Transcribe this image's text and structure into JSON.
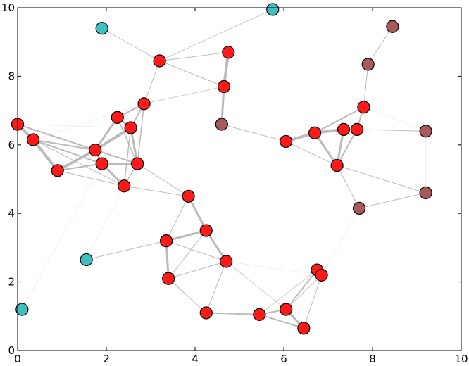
{
  "chart_data": {
    "type": "scatter",
    "subtype": "network-graph",
    "title": "",
    "xlabel": "",
    "ylabel": "",
    "xlim": [
      0,
      10
    ],
    "ylim": [
      0,
      10
    ],
    "xticks": [
      0,
      2,
      4,
      6,
      8,
      10
    ],
    "yticks": [
      0,
      2,
      4,
      6,
      8,
      10
    ],
    "grid": false,
    "legend": "none",
    "colors": {
      "red": "#ff1a1a",
      "teal": "#3fbfbf",
      "brown": "#a85a5a",
      "edge": "#bbbbbb",
      "node_outline": "#000000"
    },
    "nodes": [
      {
        "id": 0,
        "x": 0.0,
        "y": 6.6,
        "color": "red"
      },
      {
        "id": 1,
        "x": 0.35,
        "y": 6.15,
        "color": "red"
      },
      {
        "id": 2,
        "x": 0.9,
        "y": 5.25,
        "color": "red"
      },
      {
        "id": 3,
        "x": 1.75,
        "y": 5.85,
        "color": "red"
      },
      {
        "id": 4,
        "x": 1.9,
        "y": 5.45,
        "color": "red"
      },
      {
        "id": 5,
        "x": 2.25,
        "y": 6.8,
        "color": "red"
      },
      {
        "id": 6,
        "x": 2.55,
        "y": 6.5,
        "color": "red"
      },
      {
        "id": 7,
        "x": 2.85,
        "y": 7.2,
        "color": "red"
      },
      {
        "id": 8,
        "x": 2.7,
        "y": 5.45,
        "color": "red"
      },
      {
        "id": 9,
        "x": 2.4,
        "y": 4.8,
        "color": "red"
      },
      {
        "id": 10,
        "x": 3.2,
        "y": 8.45,
        "color": "red"
      },
      {
        "id": 11,
        "x": 4.75,
        "y": 8.7,
        "color": "red"
      },
      {
        "id": 12,
        "x": 4.65,
        "y": 7.7,
        "color": "red"
      },
      {
        "id": 13,
        "x": 4.6,
        "y": 6.6,
        "color": "brown"
      },
      {
        "id": 14,
        "x": 3.85,
        "y": 4.5,
        "color": "red"
      },
      {
        "id": 15,
        "x": 4.25,
        "y": 3.5,
        "color": "red"
      },
      {
        "id": 16,
        "x": 3.35,
        "y": 3.2,
        "color": "red"
      },
      {
        "id": 17,
        "x": 4.7,
        "y": 2.6,
        "color": "red"
      },
      {
        "id": 18,
        "x": 3.4,
        "y": 2.1,
        "color": "red"
      },
      {
        "id": 19,
        "x": 4.25,
        "y": 1.1,
        "color": "red"
      },
      {
        "id": 20,
        "x": 5.45,
        "y": 1.05,
        "color": "red"
      },
      {
        "id": 21,
        "x": 6.05,
        "y": 1.2,
        "color": "red"
      },
      {
        "id": 22,
        "x": 6.45,
        "y": 0.65,
        "color": "red"
      },
      {
        "id": 23,
        "x": 6.75,
        "y": 2.35,
        "color": "red"
      },
      {
        "id": 24,
        "x": 6.85,
        "y": 2.2,
        "color": "red"
      },
      {
        "id": 25,
        "x": 6.05,
        "y": 6.1,
        "color": "red"
      },
      {
        "id": 26,
        "x": 6.7,
        "y": 6.35,
        "color": "red"
      },
      {
        "id": 27,
        "x": 7.35,
        "y": 6.45,
        "color": "red"
      },
      {
        "id": 28,
        "x": 7.65,
        "y": 6.45,
        "color": "red"
      },
      {
        "id": 29,
        "x": 7.8,
        "y": 7.1,
        "color": "red"
      },
      {
        "id": 30,
        "x": 7.2,
        "y": 5.4,
        "color": "red"
      },
      {
        "id": 31,
        "x": 7.9,
        "y": 8.35,
        "color": "brown"
      },
      {
        "id": 32,
        "x": 8.45,
        "y": 9.45,
        "color": "brown"
      },
      {
        "id": 33,
        "x": 9.2,
        "y": 6.4,
        "color": "brown"
      },
      {
        "id": 34,
        "x": 9.2,
        "y": 4.6,
        "color": "brown"
      },
      {
        "id": 35,
        "x": 7.7,
        "y": 4.15,
        "color": "brown"
      },
      {
        "id": 36,
        "x": 1.9,
        "y": 9.4,
        "color": "teal"
      },
      {
        "id": 37,
        "x": 5.75,
        "y": 9.95,
        "color": "teal"
      },
      {
        "id": 38,
        "x": 1.55,
        "y": 2.65,
        "color": "teal"
      },
      {
        "id": 39,
        "x": 0.1,
        "y": 1.2,
        "color": "teal"
      }
    ],
    "edges": [
      [
        0,
        1,
        4
      ],
      [
        1,
        2,
        4
      ],
      [
        0,
        3,
        2
      ],
      [
        1,
        3,
        2
      ],
      [
        2,
        3,
        4
      ],
      [
        2,
        4,
        2
      ],
      [
        2,
        9,
        1
      ],
      [
        1,
        4,
        2
      ],
      [
        3,
        4,
        3
      ],
      [
        3,
        5,
        3
      ],
      [
        3,
        6,
        4
      ],
      [
        3,
        8,
        2
      ],
      [
        4,
        8,
        3
      ],
      [
        4,
        9,
        3
      ],
      [
        5,
        6,
        3
      ],
      [
        5,
        7,
        2
      ],
      [
        6,
        7,
        2
      ],
      [
        6,
        8,
        3
      ],
      [
        6,
        9,
        1.5
      ],
      [
        7,
        8,
        1.5
      ],
      [
        5,
        8,
        1.5
      ],
      [
        8,
        9,
        1.5
      ],
      [
        0,
        8,
        1
      ],
      [
        1,
        9,
        1
      ],
      [
        7,
        10,
        1
      ],
      [
        10,
        12,
        1
      ],
      [
        10,
        11,
        1
      ],
      [
        11,
        12,
        4
      ],
      [
        12,
        13,
        3
      ],
      [
        7,
        12,
        0.7
      ],
      [
        10,
        37,
        0.8
      ],
      [
        36,
        10,
        0.8
      ],
      [
        13,
        25,
        1
      ],
      [
        9,
        14,
        1
      ],
      [
        8,
        14,
        1
      ],
      [
        14,
        15,
        3
      ],
      [
        14,
        16,
        1
      ],
      [
        15,
        16,
        3
      ],
      [
        15,
        17,
        3
      ],
      [
        16,
        18,
        3
      ],
      [
        16,
        17,
        1
      ],
      [
        18,
        15,
        1
      ],
      [
        18,
        19,
        1
      ],
      [
        18,
        17,
        1
      ],
      [
        19,
        17,
        1
      ],
      [
        19,
        20,
        2
      ],
      [
        20,
        21,
        2
      ],
      [
        21,
        22,
        3
      ],
      [
        20,
        22,
        2
      ],
      [
        21,
        23,
        2
      ],
      [
        22,
        24,
        1
      ],
      [
        23,
        24,
        2
      ],
      [
        21,
        24,
        1
      ],
      [
        20,
        23,
        0.7
      ],
      [
        17,
        21,
        0.7
      ],
      [
        17,
        24,
        0.4
      ],
      [
        25,
        26,
        4
      ],
      [
        25,
        30,
        1
      ],
      [
        26,
        27,
        4
      ],
      [
        26,
        28,
        2
      ],
      [
        26,
        29,
        2
      ],
      [
        26,
        30,
        3
      ],
      [
        27,
        28,
        3
      ],
      [
        27,
        30,
        3
      ],
      [
        28,
        30,
        2
      ],
      [
        28,
        29,
        2
      ],
      [
        29,
        31,
        1
      ],
      [
        31,
        32,
        1
      ],
      [
        28,
        33,
        1
      ],
      [
        33,
        34,
        0.5
      ],
      [
        34,
        35,
        1
      ],
      [
        30,
        35,
        1
      ],
      [
        30,
        34,
        1
      ],
      [
        29,
        33,
        0.4
      ],
      [
        38,
        16,
        1
      ],
      [
        38,
        9,
        0.4
      ],
      [
        39,
        4,
        0.4
      ],
      [
        0,
        6,
        0.4
      ],
      [
        1,
        7,
        0.4
      ],
      [
        24,
        35,
        0.4
      ],
      [
        13,
        11,
        0.4
      ],
      [
        25,
        13,
        0.4
      ]
    ]
  }
}
